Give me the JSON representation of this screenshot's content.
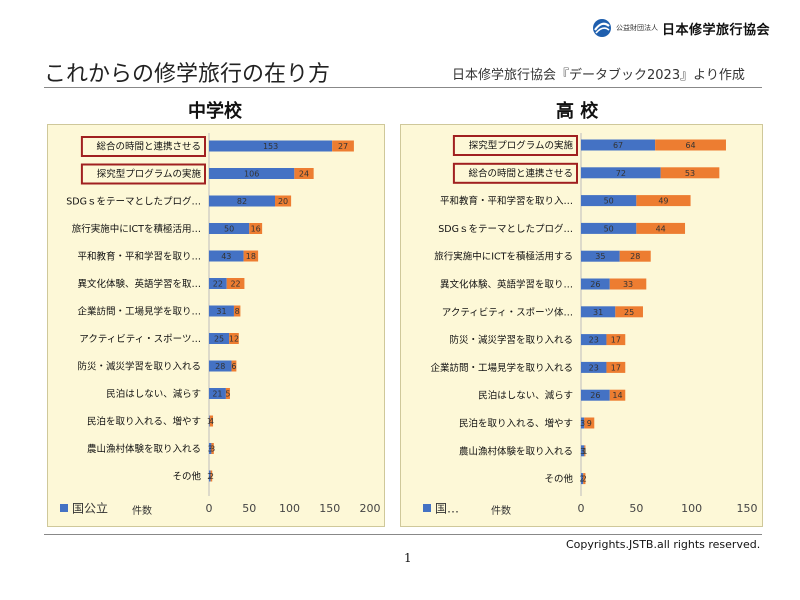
{
  "header": {
    "logo_sub": "公益財団法人",
    "logo_main": "日本修学旅行協会",
    "title": "これからの修学旅行の在り方",
    "source": "日本修学旅行協会『データブック2023』より作成"
  },
  "footer": {
    "copyright": "Copyrights.JSTB.all rights reserved.",
    "page_number": "1"
  },
  "colors": {
    "series_a": "#4472c4",
    "series_b": "#ed7d31",
    "panel_bg": "#fdf8d7",
    "highlight_box": "#a02020"
  },
  "chart_data": [
    {
      "type": "bar",
      "orientation": "horizontal",
      "stacked": true,
      "title": "中学校",
      "categories": [
        "総合の時間と連携させる",
        "探究型プログラムの実施",
        "SDGｓをテーマとしたプログ…",
        "旅行実施中にICTを積極活用…",
        "平和教育・平和学習を取り…",
        "異文化体験、英語学習を取…",
        "企業訪問・工場見学を取り…",
        "アクティビティ・スポーツ…",
        "防災・減災学習を取り入れる",
        "民泊はしない、減らす",
        "民泊を取り入れる、増やす",
        "農山漁村体験を取り入れる",
        "その他"
      ],
      "series": [
        {
          "name": "国公立",
          "values": [
            153,
            106,
            82,
            50,
            43,
            22,
            31,
            25,
            28,
            21,
            1,
            3,
            2
          ]
        },
        {
          "values": [
            27,
            24,
            20,
            16,
            18,
            22,
            8,
            12,
            6,
            5,
            4,
            3,
            2
          ]
        }
      ],
      "highlighted_categories": [
        0,
        1
      ],
      "xticks": [
        0,
        50,
        100,
        150,
        200
      ],
      "xlim": [
        0,
        200
      ],
      "xlabel": "件数",
      "legend_labels": [
        "国公立"
      ],
      "legend_position": "bottom-left"
    },
    {
      "type": "bar",
      "orientation": "horizontal",
      "stacked": true,
      "title": "高 校",
      "categories": [
        "探究型プログラムの実施",
        "総合の時間と連携させる",
        "平和教育・平和学習を取り入…",
        "SDGｓをテーマとしたプログ…",
        "旅行実施中にICTを積極活用する",
        "異文化体験、英語学習を取り…",
        "アクティビティ・スポーツ体…",
        "防災・減災学習を取り入れる",
        "企業訪問・工場見学を取り入れる",
        "民泊はしない、減らす",
        "民泊を取り入れる、増やす",
        "農山漁村体験を取り入れる",
        "その他"
      ],
      "series": [
        {
          "name": "国…",
          "values": [
            67,
            72,
            50,
            50,
            35,
            26,
            31,
            23,
            23,
            26,
            3,
            3,
            2
          ]
        },
        {
          "values": [
            64,
            53,
            49,
            44,
            28,
            33,
            25,
            17,
            17,
            14,
            9,
            1,
            2
          ]
        }
      ],
      "highlighted_categories": [
        0,
        1
      ],
      "xticks": [
        0,
        50,
        100,
        150
      ],
      "xlim": [
        0,
        150
      ],
      "xlabel": "件数",
      "legend_labels": [
        "国…"
      ],
      "legend_position": "bottom-left"
    }
  ]
}
